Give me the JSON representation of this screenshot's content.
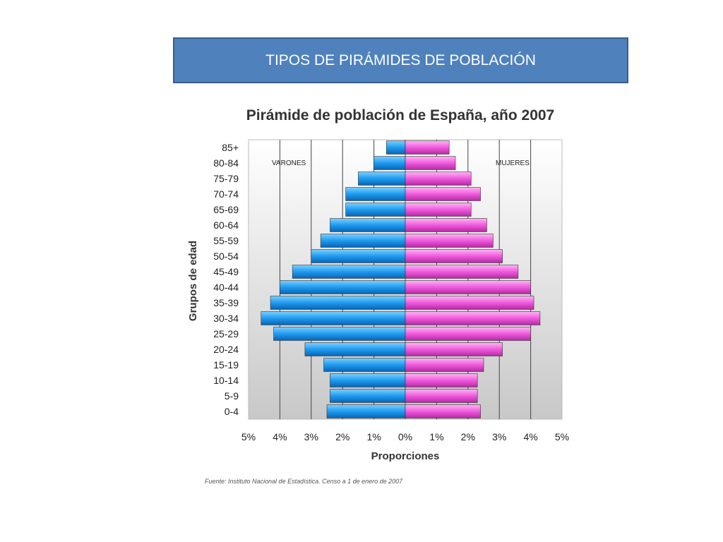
{
  "slide": {
    "title": "TIPOS DE PIRÁMIDES DE POBLACIÓN"
  },
  "chart_data": {
    "type": "bar",
    "orientation": "horizontal-pyramid",
    "title": "Pirámide de población de España, año 2007",
    "xlabel": "Proporciones",
    "ylabel": "Grupos de edad",
    "source": "Fuente: Instituto Nacional de Estadística. Censo a 1 de enero de 2007",
    "categories": [
      "0-4",
      "5-9",
      "10-14",
      "15-19",
      "20-24",
      "25-29",
      "30-34",
      "35-39",
      "40-44",
      "45-49",
      "50-54",
      "55-59",
      "60-64",
      "65-69",
      "70-74",
      "75-79",
      "80-84",
      "85+"
    ],
    "series": [
      {
        "name": "VARONES",
        "color": "#1e9bf0",
        "values": [
          2.5,
          2.4,
          2.4,
          2.6,
          3.2,
          4.2,
          4.6,
          4.3,
          4.0,
          3.6,
          3.0,
          2.7,
          2.4,
          1.9,
          1.9,
          1.5,
          1.0,
          0.6
        ]
      },
      {
        "name": "MUJERES",
        "color": "#f05ade",
        "values": [
          2.4,
          2.3,
          2.3,
          2.5,
          3.1,
          4.0,
          4.3,
          4.1,
          4.0,
          3.6,
          3.1,
          2.8,
          2.6,
          2.1,
          2.4,
          2.1,
          1.6,
          1.4
        ]
      }
    ],
    "xlim": [
      -5,
      5
    ],
    "xticks": [
      "5%",
      "4%",
      "3%",
      "2%",
      "1%",
      "0%",
      "1%",
      "2%",
      "3%",
      "4%",
      "5%"
    ],
    "grid": true,
    "legend_placement": "top"
  }
}
